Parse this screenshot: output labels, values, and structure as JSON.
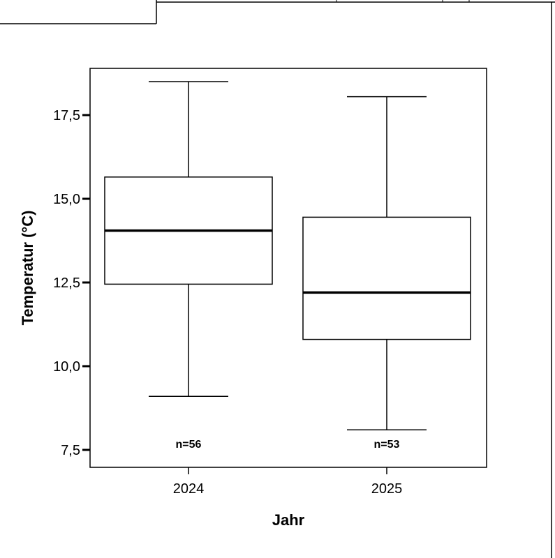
{
  "chart_data": {
    "type": "boxplot",
    "xlabel": "Jahr",
    "ylabel": "Temperatur (°C)",
    "ylim": [
      7.5,
      18.75
    ],
    "y_ticks": [
      7.5,
      10.0,
      12.5,
      15.0,
      17.5
    ],
    "y_tick_labels": [
      "7,5",
      "10,0",
      "12,5",
      "15,0",
      "17,5"
    ],
    "categories": [
      "2024",
      "2025"
    ],
    "boxes": [
      {
        "category": "2024",
        "min": 9.1,
        "q1": 12.45,
        "median": 14.05,
        "q3": 15.65,
        "max": 18.5,
        "n_label": "n=56"
      },
      {
        "category": "2025",
        "min": 8.1,
        "q1": 10.8,
        "median": 12.2,
        "q3": 14.45,
        "max": 18.05,
        "n_label": "n=53"
      }
    ],
    "grid": false,
    "legend": "none"
  }
}
